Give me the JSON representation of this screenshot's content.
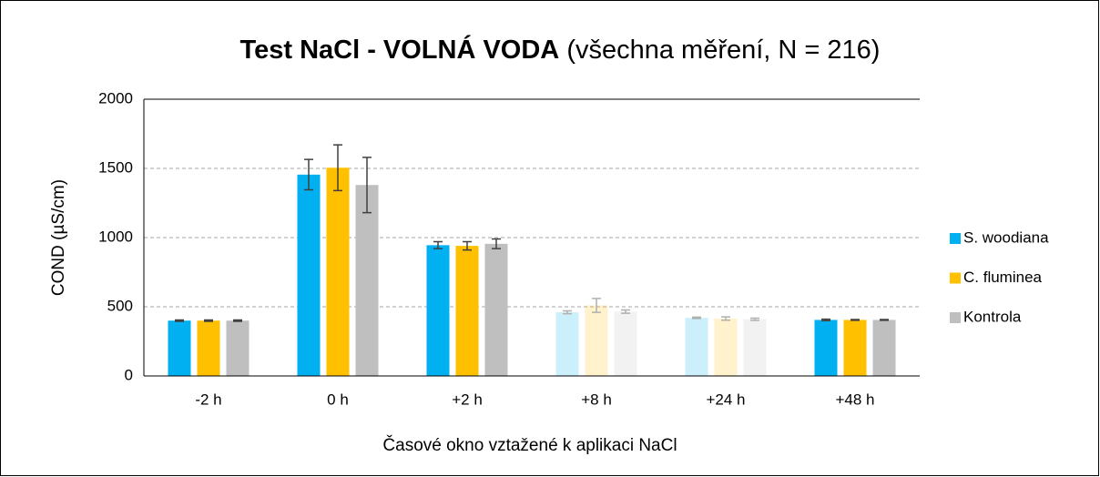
{
  "chart_data": {
    "type": "bar",
    "title": "Test NaCl - VOLNÁ VODA",
    "subtitle": "(všechna měření, N = 216)",
    "x_label": "Časové okno vztažené k aplikaci NaCl",
    "y_label": "COND (µS/cm)",
    "categories": [
      "-2 h",
      "0 h",
      "+2 h",
      "+8 h",
      "+24 h",
      "+48 h"
    ],
    "faded": [
      "+8 h",
      "+24 h"
    ],
    "series": [
      {
        "name": "S. woodiana",
        "color": "#00b0f0",
        "values": [
          400,
          1455,
          945,
          460,
          420,
          405
        ],
        "errors": [
          5,
          110,
          25,
          10,
          5,
          5
        ]
      },
      {
        "name": "C. fluminea",
        "color": "#ffc000",
        "values": [
          400,
          1505,
          940,
          510,
          415,
          405
        ],
        "errors": [
          5,
          165,
          30,
          50,
          12,
          3
        ]
      },
      {
        "name": "Kontrola",
        "color": "#bfbfbf",
        "values": [
          400,
          1380,
          955,
          465,
          410,
          405
        ],
        "errors": [
          5,
          200,
          35,
          12,
          8,
          3
        ]
      }
    ],
    "ylim": [
      0,
      2000
    ],
    "yticks": [
      0,
      500,
      1000,
      1500,
      2000
    ],
    "grid": true,
    "legend": "right"
  }
}
